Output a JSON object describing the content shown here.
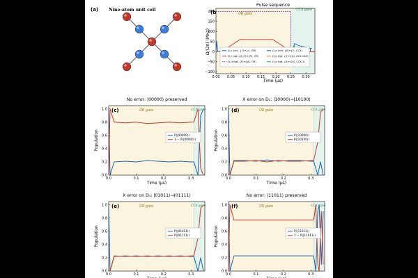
{
  "panel_a": {
    "label": "(a)",
    "title": "Nine-atom unit cell",
    "colors": {
      "red_atom": "#c0392b",
      "blue_atom": "#3b7dd8"
    }
  },
  "panel_b": {
    "label": "(b)",
    "title": "Pulse sequence",
    "ylabel": "Ω/(2π) (MHz)",
    "xlabel": "Time (μs)",
    "xticks": [
      "0.00",
      "0.05",
      "0.10",
      "0.15",
      "0.20",
      "0.25",
      "0.30"
    ],
    "yticks": [
      "200",
      "150",
      "100",
      "50",
      "0",
      "−50",
      "−100"
    ],
    "or_label": "OR gate",
    "ccx_label": "CCX gate",
    "legend": [
      "Ω_c (ctrl, {1⟩↔{r⟩, OR)",
      "Ω_t (tgt, {A_2⟩↔{R⟩, OR)",
      "Ω_d (tgt, {P⟩↔{A⟩, OR)",
      "Ω_d (ctrl, {0⟩↔{r⟩, CCX)",
      "Ω_d (tgt, {1⟩↔{A⟩, CCX 1&3)",
      "Ω_d (tgt, {A⟩↔{A⟩, CCX 2)"
    ]
  },
  "panels": [
    {
      "label": "(c)",
      "title": "No error: |00000⟩ preserved",
      "legend": [
        "P(|00000⟩)",
        "1 − P(|00000⟩)"
      ],
      "or_label": "OR gate",
      "ccx_label": "CCX gate"
    },
    {
      "label": "(d)",
      "title": "X error on D₁: |10000⟩→|10100⟩",
      "legend": [
        "P(|10000⟩)",
        "P(|10100⟩)"
      ],
      "or_label": "OR gate",
      "ccx_label": "CCX gate"
    },
    {
      "label": "(e)",
      "title": "X error on D₃: |01011⟩→|01111⟩",
      "legend": [
        "P(|01011⟩)",
        "P(|01111⟩)"
      ],
      "or_label": "OR gate",
      "ccx_label": "CCX gate"
    },
    {
      "label": "(f)",
      "title": "No error: |11011⟩ preserved",
      "legend": [
        "P(|11011⟩)",
        "1 − P(|11011⟩)"
      ],
      "or_label": "OR gate",
      "ccx_label": "CCX gate"
    }
  ],
  "axes": {
    "ylabel": "Population",
    "xlabel": "Time (μs)",
    "xticks": [
      "0.0",
      "0.1",
      "0.2",
      "0.3"
    ],
    "yticks": [
      "1.0",
      "0.8",
      "0.6",
      "0.4",
      "0.2",
      "0.0"
    ]
  },
  "colors": {
    "blue": "#1f5fa6",
    "red": "#c0392b",
    "or_bg": "#fbf5df",
    "ccx_bg": "#e4f3ec",
    "purple": "#7b3fb5",
    "green": "#2e9a5b",
    "orange": "#d9822b"
  },
  "chart_data": [
    {
      "type": "line",
      "panel": "(b)",
      "title": "Pulse sequence",
      "xlabel": "Time (μs)",
      "ylabel": "Ω/(2π) (MHz)",
      "xlim": [
        0,
        0.33
      ],
      "ylim": [
        -110,
        215
      ],
      "series": [
        {
          "name": "Ω_c (ctrl, {1⟩↔{r⟩, OR)",
          "x": [
            0,
            0.25,
            0.25,
            0.33
          ],
          "y": [
            200,
            200,
            0,
            0
          ]
        },
        {
          "name": "Ω_t (tgt, {A_2⟩↔{R⟩, OR)",
          "x": [
            0,
            0.02,
            0.06,
            0.08,
            0.19,
            0.21,
            0.25,
            0.33
          ],
          "y": [
            0,
            0,
            40,
            60,
            60,
            40,
            0,
            0
          ]
        },
        {
          "name": "Ω_d (ctrl, {0⟩↔{r⟩, CCX)",
          "x": [
            0,
            0.003,
            0.006,
            0.255,
            0.262,
            0.275,
            0.29,
            0.3,
            0.31,
            0.32
          ],
          "y": [
            0,
            50,
            0,
            0,
            40,
            30,
            25,
            20,
            18,
            15
          ]
        }
      ]
    },
    {
      "type": "line",
      "panel": "(c)",
      "xlim": [
        0,
        0.35
      ],
      "ylim": [
        0,
        1.05
      ],
      "series": [
        {
          "name": "P(|00000⟩)",
          "x": [
            0,
            0.005,
            0.02,
            0.06,
            0.1,
            0.14,
            0.18,
            0.22,
            0.26,
            0.3,
            0.31,
            0.325,
            0.335,
            0.345
          ],
          "y": [
            1.0,
            0.0,
            0.2,
            0.21,
            0.2,
            0.22,
            0.21,
            0.2,
            0.21,
            0.2,
            0.2,
            0.0,
            0.9,
            1.0
          ]
        },
        {
          "name": "1 − P(|00000⟩)",
          "x": [
            0,
            0.005,
            0.02,
            0.06,
            0.1,
            0.14,
            0.18,
            0.22,
            0.26,
            0.3,
            0.31,
            0.325,
            0.335,
            0.345
          ],
          "y": [
            0.0,
            1.0,
            0.8,
            0.79,
            0.8,
            0.78,
            0.79,
            0.8,
            0.79,
            0.8,
            0.8,
            1.0,
            0.1,
            0.0
          ]
        }
      ]
    },
    {
      "type": "line",
      "panel": "(d)",
      "xlim": [
        0,
        0.35
      ],
      "ylim": [
        0,
        1.05
      ],
      "series": [
        {
          "name": "P(|10000⟩)",
          "x": [
            0,
            0.005,
            0.02,
            0.06,
            0.1,
            0.14,
            0.18,
            0.22,
            0.26,
            0.3,
            0.31,
            0.325,
            0.335,
            0.345
          ],
          "y": [
            1.0,
            0.0,
            0.22,
            0.22,
            0.21,
            0.23,
            0.21,
            0.22,
            0.22,
            0.21,
            0.21,
            0.0,
            0.2,
            0.0
          ]
        },
        {
          "name": "P(|10100⟩)",
          "x": [
            0,
            0.005,
            0.02,
            0.06,
            0.1,
            0.14,
            0.18,
            0.22,
            0.26,
            0.3,
            0.31,
            0.325,
            0.335,
            0.345
          ],
          "y": [
            0.0,
            0.0,
            0.21,
            0.21,
            0.22,
            0.2,
            0.22,
            0.21,
            0.21,
            0.22,
            0.22,
            0.5,
            0.95,
            1.0
          ]
        }
      ]
    },
    {
      "type": "line",
      "panel": "(e)",
      "xlim": [
        0,
        0.35
      ],
      "ylim": [
        0,
        1.05
      ],
      "series": [
        {
          "name": "P(|01011⟩)",
          "x": [
            0,
            0.005,
            0.02,
            0.06,
            0.1,
            0.14,
            0.18,
            0.22,
            0.26,
            0.3,
            0.31,
            0.325,
            0.335,
            0.345
          ],
          "y": [
            1.0,
            0.0,
            0.23,
            0.22,
            0.23,
            0.22,
            0.23,
            0.22,
            0.23,
            0.22,
            0.22,
            0.0,
            0.2,
            0.0
          ]
        },
        {
          "name": "P(|01111⟩)",
          "x": [
            0,
            0.005,
            0.02,
            0.06,
            0.1,
            0.14,
            0.18,
            0.22,
            0.26,
            0.3,
            0.31,
            0.325,
            0.335,
            0.345
          ],
          "y": [
            0.0,
            0.0,
            0.22,
            0.23,
            0.22,
            0.23,
            0.22,
            0.23,
            0.22,
            0.23,
            0.23,
            0.5,
            0.95,
            1.0
          ]
        }
      ]
    },
    {
      "type": "line",
      "panel": "(f)",
      "xlim": [
        0,
        0.35
      ],
      "ylim": [
        0,
        1.05
      ],
      "series": [
        {
          "name": "P(|11011⟩)",
          "x": [
            0,
            0.005,
            0.02,
            0.1,
            0.2,
            0.3,
            0.31,
            0.318,
            0.325,
            0.33,
            0.338,
            0.345
          ],
          "y": [
            1.0,
            0.0,
            0.23,
            0.23,
            0.23,
            0.23,
            0.23,
            0.0,
            0.9,
            1.0,
            0.1,
            0.9
          ]
        },
        {
          "name": "1 − P(|11011⟩)",
          "x": [
            0,
            0.005,
            0.02,
            0.1,
            0.2,
            0.3,
            0.31,
            0.318,
            0.325,
            0.33,
            0.338,
            0.345
          ],
          "y": [
            0.0,
            1.0,
            0.77,
            0.77,
            0.77,
            0.77,
            0.77,
            1.0,
            0.1,
            0.0,
            0.9,
            0.1
          ]
        }
      ]
    }
  ]
}
